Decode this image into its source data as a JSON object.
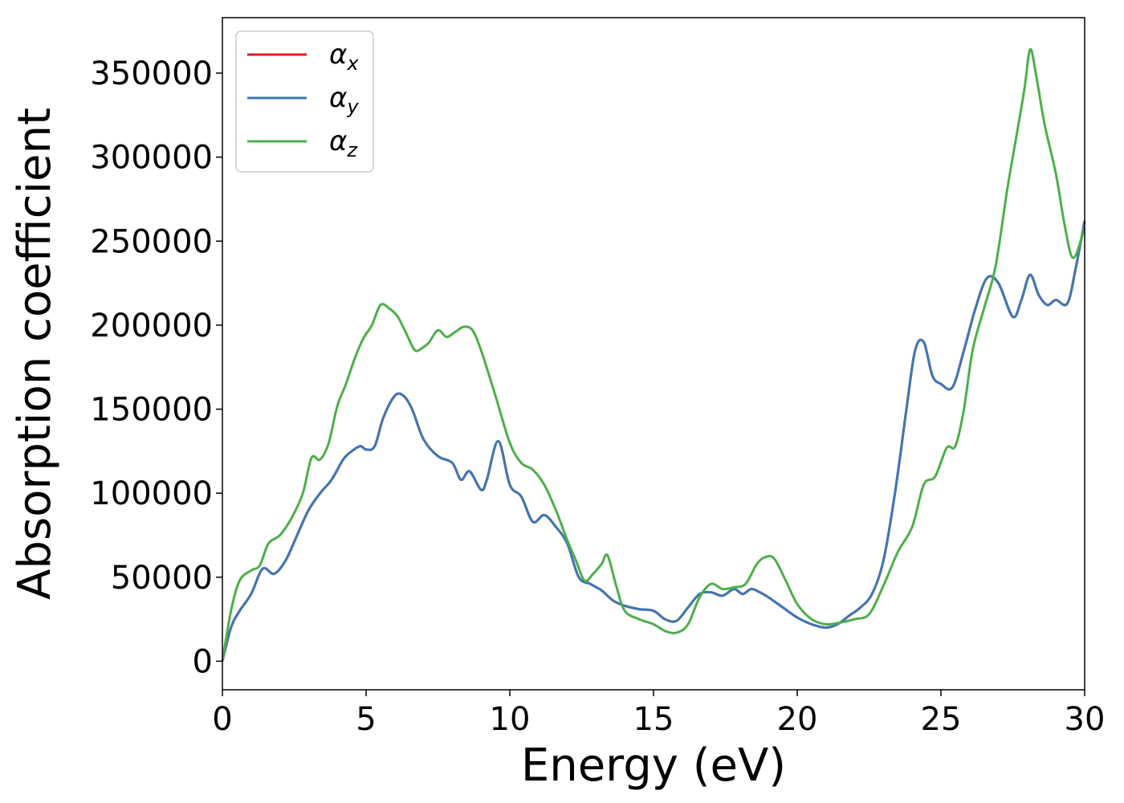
{
  "chart_data": {
    "type": "line",
    "xlabel": "Energy (eV)",
    "ylabel": "Absorption coefficient",
    "xlim": [
      0,
      30
    ],
    "ylim": [
      -17000,
      383000
    ],
    "xticks": [
      0,
      5,
      10,
      15,
      20,
      25,
      30
    ],
    "yticks": [
      0,
      50000,
      100000,
      150000,
      200000,
      250000,
      300000,
      350000
    ],
    "grid": false,
    "legend_position": "top-left",
    "series": [
      {
        "name": "α_x",
        "symbol": "α",
        "subscript": "x",
        "color": "#e41a1c",
        "x": [
          0,
          0.3,
          0.6,
          1.0,
          1.4,
          1.8,
          2.2,
          2.6,
          3.0,
          3.4,
          3.8,
          4.2,
          4.5,
          4.8,
          5.0,
          5.3,
          5.6,
          6.0,
          6.3,
          6.6,
          7.0,
          7.5,
          8.0,
          8.3,
          8.6,
          9.0,
          9.2,
          9.6,
          10.0,
          10.4,
          10.8,
          11.2,
          11.6,
          12.0,
          12.4,
          12.8,
          13.2,
          13.6,
          14.0,
          14.5,
          15.0,
          15.4,
          15.8,
          16.2,
          16.6,
          17.0,
          17.4,
          17.8,
          18.1,
          18.4,
          18.7,
          19.0,
          19.5,
          20.0,
          20.5,
          21.0,
          21.4,
          21.8,
          22.2,
          22.6,
          23.0,
          23.4,
          23.8,
          24.1,
          24.4,
          24.7,
          25.0,
          25.4,
          25.8,
          26.2,
          26.6,
          27.0,
          27.5,
          27.8,
          28.1,
          28.4,
          28.7,
          29.0,
          29.4,
          29.7,
          30.0
        ],
        "y": [
          0,
          20000,
          30000,
          40000,
          55000,
          52000,
          60000,
          75000,
          90000,
          100000,
          108000,
          120000,
          125000,
          128000,
          126000,
          128000,
          145000,
          158000,
          158000,
          150000,
          132000,
          122000,
          118000,
          108000,
          113000,
          102000,
          108000,
          131000,
          105000,
          98000,
          83000,
          87000,
          80000,
          70000,
          50000,
          46000,
          42000,
          36000,
          33000,
          31000,
          30000,
          25000,
          24000,
          32000,
          40000,
          41000,
          39000,
          43000,
          40000,
          43000,
          41000,
          38000,
          32000,
          26000,
          22000,
          20000,
          22000,
          27000,
          32000,
          40000,
          60000,
          100000,
          150000,
          185000,
          190000,
          170000,
          165000,
          163000,
          185000,
          210000,
          228000,
          225000,
          205000,
          215000,
          230000,
          218000,
          212000,
          215000,
          213000,
          235000,
          262000
        ]
      },
      {
        "name": "α_y",
        "symbol": "α",
        "subscript": "y",
        "color": "#3d78b5",
        "x": [
          0,
          0.3,
          0.6,
          1.0,
          1.4,
          1.8,
          2.2,
          2.6,
          3.0,
          3.4,
          3.8,
          4.2,
          4.5,
          4.8,
          5.0,
          5.3,
          5.6,
          6.0,
          6.3,
          6.6,
          7.0,
          7.5,
          8.0,
          8.3,
          8.6,
          9.0,
          9.2,
          9.6,
          10.0,
          10.4,
          10.8,
          11.2,
          11.6,
          12.0,
          12.4,
          12.8,
          13.2,
          13.6,
          14.0,
          14.5,
          15.0,
          15.4,
          15.8,
          16.2,
          16.6,
          17.0,
          17.4,
          17.8,
          18.1,
          18.4,
          18.7,
          19.0,
          19.5,
          20.0,
          20.5,
          21.0,
          21.4,
          21.8,
          22.2,
          22.6,
          23.0,
          23.4,
          23.8,
          24.1,
          24.4,
          24.7,
          25.0,
          25.4,
          25.8,
          26.2,
          26.6,
          27.0,
          27.5,
          27.8,
          28.1,
          28.4,
          28.7,
          29.0,
          29.4,
          29.7,
          30.0
        ],
        "y": [
          0,
          20000,
          30000,
          40000,
          55000,
          52000,
          60000,
          75000,
          90000,
          100000,
          108000,
          120000,
          125000,
          128000,
          126000,
          128000,
          145000,
          158000,
          158000,
          150000,
          132000,
          122000,
          118000,
          108000,
          113000,
          102000,
          108000,
          131000,
          105000,
          98000,
          83000,
          87000,
          80000,
          70000,
          50000,
          46000,
          42000,
          36000,
          33000,
          31000,
          30000,
          25000,
          24000,
          32000,
          40000,
          41000,
          39000,
          43000,
          40000,
          43000,
          41000,
          38000,
          32000,
          26000,
          22000,
          20000,
          22000,
          27000,
          32000,
          40000,
          60000,
          100000,
          150000,
          185000,
          190000,
          170000,
          165000,
          163000,
          185000,
          210000,
          228000,
          225000,
          205000,
          215000,
          230000,
          218000,
          212000,
          215000,
          213000,
          235000,
          262000
        ]
      },
      {
        "name": "α_z",
        "symbol": "α",
        "subscript": "z",
        "color": "#4daf4a",
        "x": [
          0,
          0.3,
          0.6,
          1.0,
          1.3,
          1.6,
          2.0,
          2.4,
          2.8,
          3.1,
          3.4,
          3.7,
          4.0,
          4.3,
          4.6,
          4.9,
          5.2,
          5.5,
          5.8,
          6.1,
          6.4,
          6.7,
          7.0,
          7.2,
          7.5,
          7.8,
          8.1,
          8.4,
          8.7,
          9.0,
          9.5,
          10.0,
          10.4,
          10.8,
          11.2,
          11.6,
          12.0,
          12.3,
          12.6,
          12.9,
          13.2,
          13.4,
          13.7,
          14.0,
          14.5,
          15.0,
          15.4,
          15.8,
          16.2,
          16.6,
          17.0,
          17.4,
          17.8,
          18.2,
          18.6,
          18.9,
          19.2,
          19.6,
          20.0,
          20.5,
          21.0,
          21.5,
          22.0,
          22.5,
          23.0,
          23.5,
          24.0,
          24.4,
          24.8,
          25.2,
          25.5,
          25.8,
          26.1,
          26.5,
          26.9,
          27.3,
          27.6,
          27.9,
          28.1,
          28.3,
          28.6,
          29.0,
          29.3,
          29.6,
          30.0
        ],
        "y": [
          0,
          30000,
          48000,
          54000,
          57000,
          70000,
          75000,
          85000,
          100000,
          121000,
          120000,
          130000,
          152000,
          165000,
          180000,
          192000,
          200000,
          212000,
          210000,
          205000,
          195000,
          185000,
          187000,
          190000,
          197000,
          193000,
          196000,
          199000,
          197000,
          185000,
          158000,
          130000,
          118000,
          114000,
          105000,
          90000,
          72000,
          60000,
          48000,
          52000,
          58000,
          63000,
          45000,
          30000,
          25000,
          22000,
          18000,
          17000,
          22000,
          38000,
          46000,
          43000,
          44000,
          46000,
          58000,
          62000,
          61000,
          48000,
          34000,
          25000,
          22000,
          23000,
          25000,
          28000,
          45000,
          65000,
          80000,
          105000,
          110000,
          127000,
          128000,
          150000,
          185000,
          210000,
          235000,
          280000,
          310000,
          340000,
          364000,
          350000,
          320000,
          290000,
          260000,
          240000,
          258000
        ]
      }
    ]
  }
}
